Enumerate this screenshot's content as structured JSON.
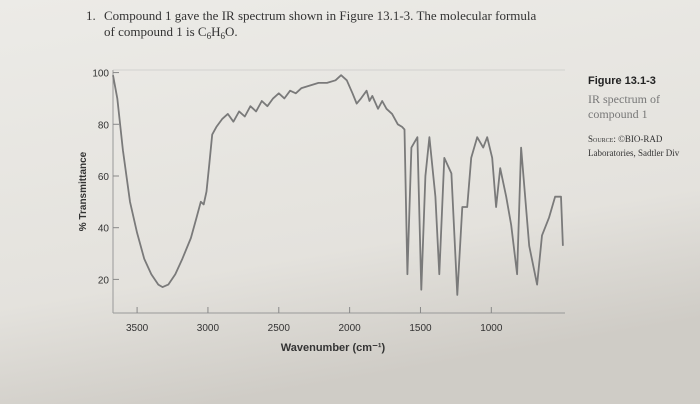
{
  "question": {
    "number": "1.",
    "line1": "Compound 1 gave the IR spectrum shown in Figure 13.1-3. The molecular formula",
    "line2": "of compound 1 is",
    "formula": [
      "C",
      "6",
      "H",
      "6",
      "O"
    ],
    "end": "."
  },
  "caption": {
    "title": "Figure 13.1-3",
    "lines": [
      "IR spectrum of",
      "compound 1"
    ],
    "source_label": "Source:",
    "source": "©BIO-RAD",
    "source_line2": "Laboratories, Sadtler Div"
  },
  "chart_data": {
    "type": "line",
    "color": "#7a7a7a",
    "xlabel": "Wavenumber (cm⁻¹)",
    "ylabel": "% Transmittance",
    "xlim": [
      3670,
      480
    ],
    "ylim": [
      7,
      101
    ],
    "xticks": [
      3500,
      3000,
      2500,
      2000,
      1500,
      1000
    ],
    "yticks": [
      20,
      40,
      60,
      80,
      100
    ],
    "x": [
      3670,
      3640,
      3600,
      3550,
      3500,
      3450,
      3400,
      3350,
      3320,
      3280,
      3230,
      3180,
      3120,
      3080,
      3050,
      3030,
      3010,
      2990,
      2970,
      2940,
      2900,
      2860,
      2820,
      2780,
      2740,
      2700,
      2660,
      2620,
      2580,
      2540,
      2500,
      2460,
      2420,
      2380,
      2340,
      2280,
      2220,
      2160,
      2100,
      2060,
      2020,
      1980,
      1950,
      1920,
      1880,
      1860,
      1840,
      1800,
      1770,
      1740,
      1700,
      1660,
      1630,
      1613,
      1592,
      1564,
      1522,
      1494,
      1465,
      1437,
      1395,
      1367,
      1332,
      1282,
      1240,
      1205,
      1170,
      1142,
      1100,
      1057,
      1029,
      994,
      966,
      937,
      895,
      860,
      818,
      790,
      733,
      677,
      642,
      592,
      550,
      508,
      495
    ],
    "values": [
      99,
      90,
      70,
      50,
      38,
      28,
      22,
      18,
      17,
      18,
      22,
      28,
      36,
      44,
      50,
      49,
      54,
      65,
      76,
      79,
      82,
      84,
      81,
      85,
      83,
      87,
      85,
      89,
      87,
      90,
      92,
      90,
      93,
      92,
      94,
      95,
      96,
      96,
      97,
      99,
      97,
      92,
      88,
      90,
      93,
      89,
      91,
      86,
      89,
      86,
      84,
      80,
      79,
      78,
      22,
      71,
      75,
      16,
      60,
      75,
      52,
      22,
      67,
      61,
      14,
      48,
      48,
      67,
      75,
      71,
      75,
      67,
      48,
      63,
      52,
      41,
      22,
      71,
      33,
      18,
      37,
      44,
      52,
      52,
      33
    ]
  }
}
